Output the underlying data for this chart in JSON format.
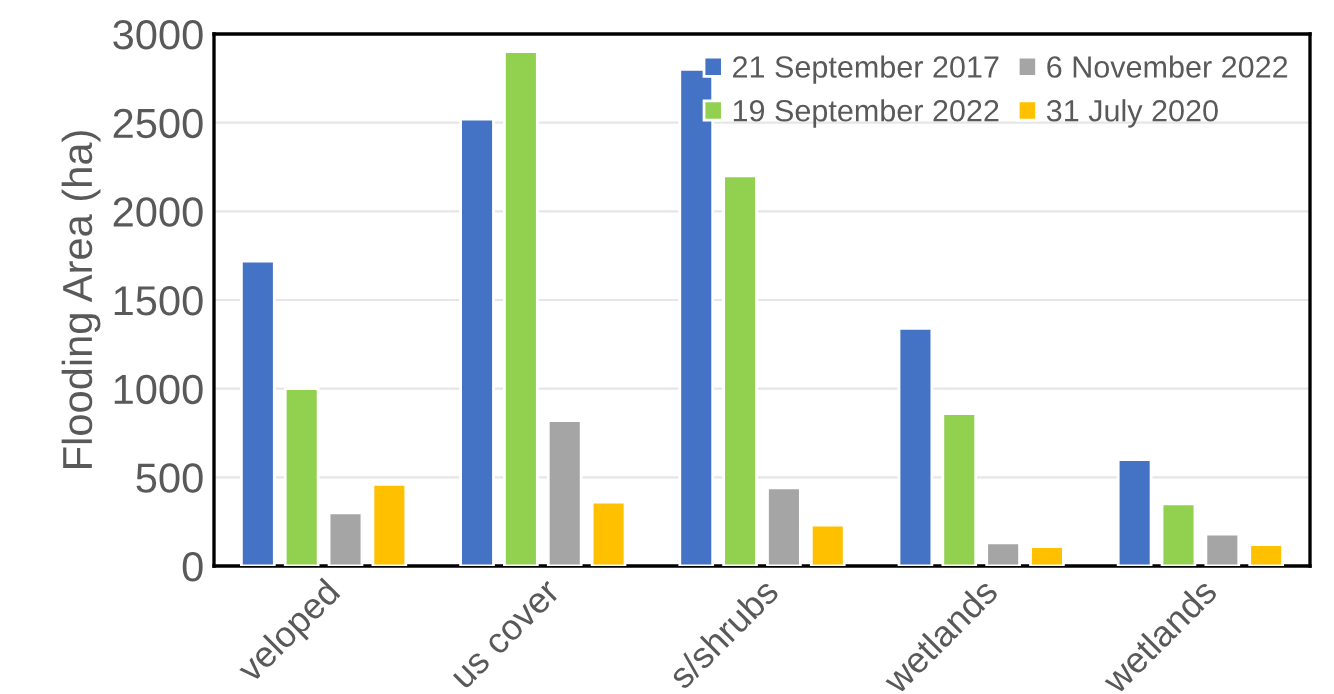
{
  "chart_data": {
    "type": "bar",
    "ylabel": "Flooding Area (ha)",
    "categories": [
      "veloped",
      "us cover",
      "s/shrubs",
      "wetlands",
      "wetlands"
    ],
    "series": [
      {
        "name": "21 September 2017",
        "color": "#4472c4",
        "values": [
          1720,
          2520,
          2800,
          1340,
          600
        ]
      },
      {
        "name": "19 September 2022",
        "color": "#92d050",
        "values": [
          1000,
          2900,
          2200,
          860,
          350
        ]
      },
      {
        "name": "6 November 2022",
        "color": "#a5a5a5",
        "values": [
          300,
          820,
          440,
          130,
          180
        ]
      },
      {
        "name": "31 July 2020",
        "color": "#ffc000",
        "values": [
          460,
          360,
          230,
          110,
          120
        ]
      }
    ],
    "ylim": [
      0,
      3000
    ],
    "yticks": [
      0,
      500,
      1000,
      1500,
      2000,
      2500,
      3000
    ],
    "grid": "y",
    "legend": "top right"
  }
}
